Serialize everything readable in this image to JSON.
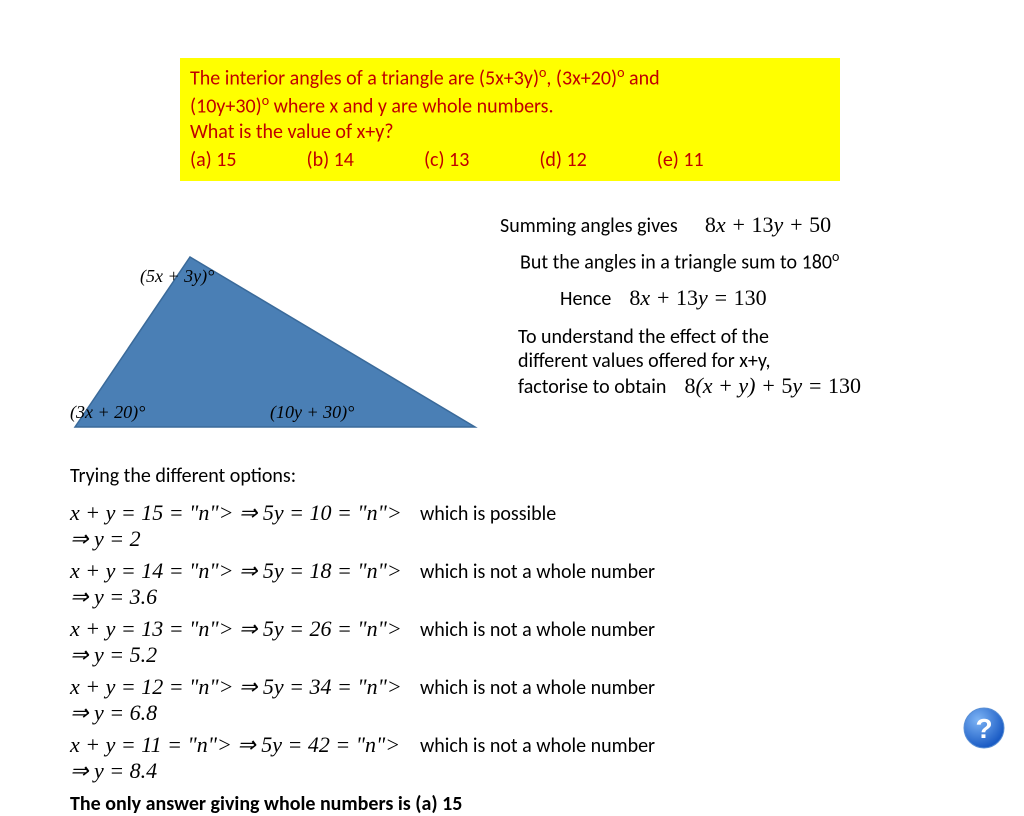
{
  "question": {
    "line1": "The interior angles of a triangle are (5x+3y)°, (3x+20)° and",
    "line2": "(10y+30)° where x and y are whole numbers.",
    "line3": "What is the value of x+y?",
    "opts": {
      "a": "(a) 15",
      "b": "(b) 14",
      "c": "(c) 13",
      "d": "(d) 12",
      "e": "(e) 11"
    }
  },
  "triangle": {
    "fill": "#4a7fb5",
    "top": "(5x + 3y)°",
    "left": "(3x + 20)°",
    "right": "(10y + 30)°"
  },
  "work": {
    "sum_label": "Summing angles gives",
    "sum_expr": "8x + 13y + 50",
    "but": "But the angles in a triangle sum to 180°",
    "hence": "Hence",
    "hence_expr": "8x + 13y = 130",
    "understand1": "To understand the effect of the",
    "understand2": "different values offered for x+y,",
    "understand3": "factorise to obtain",
    "factored": "8(x + y) + 5y = 130"
  },
  "trials": {
    "header": "Trying the different options:",
    "rows": [
      {
        "eq": "x + y = 15 ⇒ 5y = 10 ⇒ y = 2",
        "comment": "which is possible"
      },
      {
        "eq": "x + y = 14 ⇒ 5y = 18 ⇒ y = 3.6",
        "comment": "which is not a whole number"
      },
      {
        "eq": "x + y = 13 ⇒ 5y = 26 ⇒ y = 5.2",
        "comment": "which is not a whole number"
      },
      {
        "eq": "x + y = 12 ⇒ 5y = 34 ⇒ y = 6.8",
        "comment": "which is not a whole number"
      },
      {
        "eq": "x + y = 11 ⇒ 5y = 42 ⇒ y = 8.4",
        "comment": "which is not a whole number"
      }
    ],
    "answer": "The only answer giving whole numbers is (a) 15"
  },
  "colors": {
    "highlight": "#ffff00",
    "question_text": "#c00000",
    "triangle_fill": "#4a7fb5",
    "help_bg": "#2a6dd4"
  }
}
